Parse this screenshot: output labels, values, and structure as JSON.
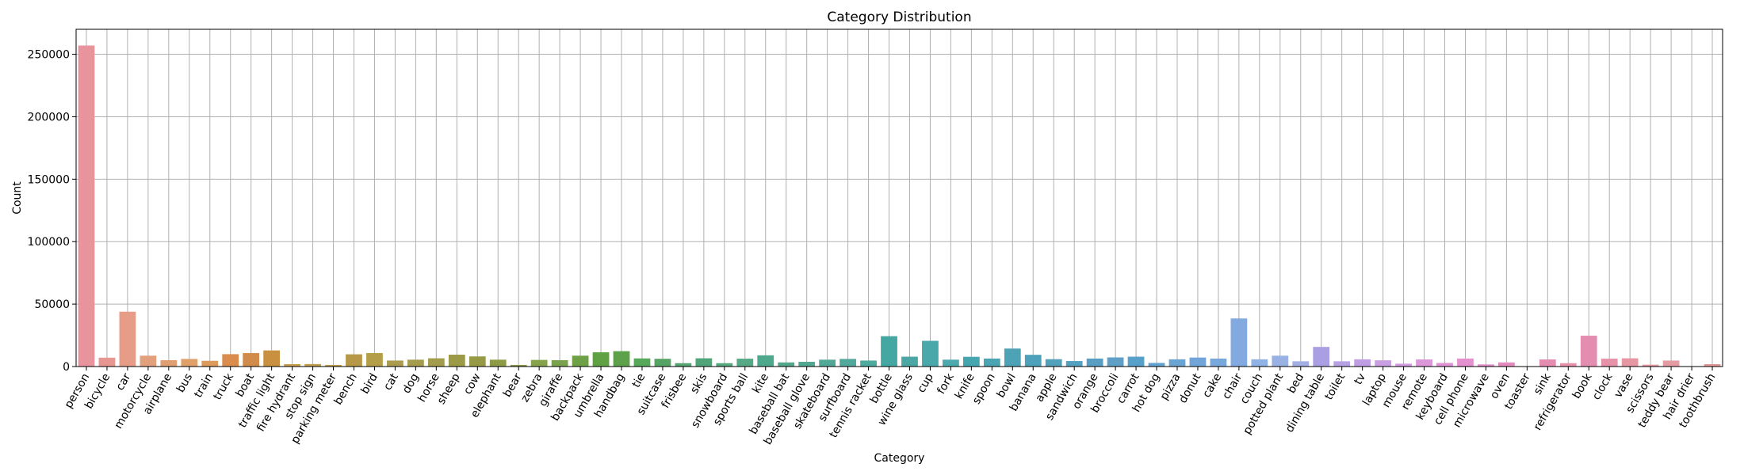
{
  "chart_data": {
    "type": "bar",
    "title": "Category Distribution",
    "xlabel": "Category",
    "ylabel": "Count",
    "ylim": [
      0,
      270000
    ],
    "yticks": [
      0,
      50000,
      100000,
      150000,
      200000,
      250000
    ],
    "ytick_labels": [
      "0",
      "50000",
      "100000",
      "150000",
      "200000",
      "250000"
    ],
    "grid": true,
    "legend": false,
    "x_tick_rotation_deg": 60,
    "categories": [
      "person",
      "bicycle",
      "car",
      "motorcycle",
      "airplane",
      "bus",
      "train",
      "truck",
      "boat",
      "traffic light",
      "fire hydrant",
      "stop sign",
      "parking meter",
      "bench",
      "bird",
      "cat",
      "dog",
      "horse",
      "sheep",
      "cow",
      "elephant",
      "bear",
      "zebra",
      "giraffe",
      "backpack",
      "umbrella",
      "handbag",
      "tie",
      "suitcase",
      "frisbee",
      "skis",
      "snowboard",
      "sports ball",
      "kite",
      "baseball bat",
      "baseball glove",
      "skateboard",
      "surfboard",
      "tennis racket",
      "bottle",
      "wine glass",
      "cup",
      "fork",
      "knife",
      "spoon",
      "bowl",
      "banana",
      "apple",
      "sandwich",
      "orange",
      "broccoli",
      "carrot",
      "hot dog",
      "pizza",
      "donut",
      "cake",
      "chair",
      "couch",
      "potted plant",
      "bed",
      "dining table",
      "toilet",
      "tv",
      "laptop",
      "mouse",
      "remote",
      "keyboard",
      "cell phone",
      "microwave",
      "oven",
      "toaster",
      "sink",
      "refrigerator",
      "book",
      "clock",
      "vase",
      "scissors",
      "teddy bear",
      "hair drier",
      "toothbrush"
    ],
    "values": [
      257000,
      7100,
      43900,
      8700,
      5100,
      6100,
      4600,
      9900,
      10800,
      12900,
      1900,
      2000,
      1300,
      9800,
      10800,
      4800,
      5500,
      6600,
      9500,
      8100,
      5500,
      1300,
      5300,
      5100,
      8700,
      11400,
      12300,
      6500,
      6200,
      2700,
      6600,
      2700,
      6300,
      9000,
      3300,
      3800,
      5500,
      6100,
      4800,
      24300,
      7900,
      20600,
      5500,
      7800,
      6400,
      14400,
      9400,
      5900,
      4400,
      6400,
      7300,
      7900,
      2900,
      5800,
      7200,
      6400,
      38500,
      5800,
      8700,
      4200,
      15700,
      4200,
      5800,
      5000,
      2300,
      5700,
      2900,
      6400,
      1700,
      3300,
      200,
      5700,
      2700,
      24700,
      6300,
      6600,
      1500,
      4800,
      200,
      1900
    ],
    "colors": [
      "#e8949d",
      "#e79691",
      "#e69c87",
      "#e3a07c",
      "#e09e73",
      "#e0a06a",
      "#dc9a5c",
      "#d98c4b",
      "#d18c4c",
      "#c8903f",
      "#c89b4d",
      "#bf9c50",
      "#bf9c50",
      "#b69848",
      "#b49f48",
      "#aa9b4e",
      "#a69c50",
      "#a29c4c",
      "#9c9a46",
      "#969a44",
      "#8e9b45",
      "#8a9a49",
      "#84a34b",
      "#7aa24c",
      "#6ea045",
      "#5fa144",
      "#5da24b",
      "#58a859",
      "#55a466",
      "#55a471",
      "#4fa578",
      "#55a87e",
      "#56a985",
      "#4ea88b",
      "#53a78d",
      "#51a792",
      "#52a797",
      "#52a89a",
      "#4ea99e",
      "#45a7a1",
      "#4ba7a4",
      "#4aa8aa",
      "#4ea9ae",
      "#46a6b0",
      "#4aa4b2",
      "#4ea2b6",
      "#4ea1ba",
      "#53a0bb",
      "#54a0c0",
      "#599fc3",
      "#60a0c6",
      "#56a0c9",
      "#62a3d0",
      "#6aa4d2",
      "#71a4d8",
      "#79a8dc",
      "#83aae0",
      "#90b2e4",
      "#9ab1e4",
      "#a3aee5",
      "#a99fe2",
      "#b6a1e4",
      "#bf9ee4",
      "#c99fe3",
      "#d29adf",
      "#dc96da",
      "#e094d4",
      "#e691cf",
      "#e28bc8",
      "#e48bbe",
      "#e589b9",
      "#e48db0",
      "#e690aa",
      "#e38eb0",
      "#e692a9",
      "#e697a2",
      "#e599a1",
      "#e59ba3",
      "#e39a9d",
      "#e49696"
    ]
  }
}
